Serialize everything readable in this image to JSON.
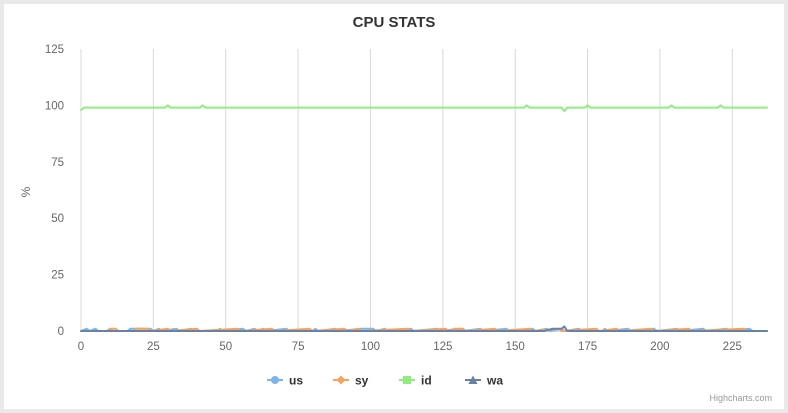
{
  "chart_data": {
    "type": "line",
    "title": "CPU STATS",
    "xlabel": "",
    "ylabel": "%",
    "xlim": [
      0,
      237
    ],
    "ylim": [
      0,
      125
    ],
    "x_ticks": [
      0,
      25,
      50,
      75,
      100,
      125,
      150,
      175,
      200,
      225
    ],
    "y_ticks": [
      0,
      25,
      50,
      75,
      100,
      125
    ],
    "grid": {
      "vertical": true,
      "horizontal": false
    },
    "legend_placement": "bottom-center",
    "credits": "Highcharts.com",
    "series": [
      {
        "name": "us",
        "color": "#7cb5ec",
        "marker": "circle",
        "points": [
          [
            0,
            0
          ],
          [
            2,
            1
          ],
          [
            3,
            0
          ],
          [
            5,
            1
          ],
          [
            6,
            0
          ],
          [
            9,
            0
          ],
          [
            10,
            1
          ],
          [
            11,
            0
          ],
          [
            16,
            0
          ],
          [
            17,
            1
          ],
          [
            24,
            1
          ],
          [
            25,
            0
          ],
          [
            27,
            1
          ],
          [
            28,
            0
          ],
          [
            33,
            1
          ],
          [
            34,
            0
          ],
          [
            38,
            1
          ],
          [
            39,
            0
          ],
          [
            47,
            0
          ],
          [
            48,
            1
          ],
          [
            49,
            0
          ],
          [
            56,
            1
          ],
          [
            57,
            0
          ],
          [
            60,
            1
          ],
          [
            61,
            0
          ],
          [
            63,
            1
          ],
          [
            64,
            0
          ],
          [
            71,
            1
          ],
          [
            72,
            0
          ],
          [
            80,
            0
          ],
          [
            81,
            1
          ],
          [
            82,
            0
          ],
          [
            88,
            1
          ],
          [
            89,
            0
          ],
          [
            97,
            1
          ],
          [
            101,
            1
          ],
          [
            102,
            0
          ],
          [
            105,
            1
          ],
          [
            106,
            0
          ],
          [
            114,
            1
          ],
          [
            115,
            0
          ],
          [
            123,
            1
          ],
          [
            124,
            0
          ],
          [
            131,
            1
          ],
          [
            132,
            0
          ],
          [
            138,
            1
          ],
          [
            139,
            0
          ],
          [
            147,
            1
          ],
          [
            148,
            0
          ],
          [
            156,
            1
          ],
          [
            157,
            0
          ],
          [
            161,
            1
          ],
          [
            162,
            0
          ],
          [
            166,
            1
          ],
          [
            167,
            0
          ],
          [
            172,
            1
          ],
          [
            173,
            0
          ],
          [
            180,
            0
          ],
          [
            181,
            1
          ],
          [
            182,
            0
          ],
          [
            189,
            1
          ],
          [
            190,
            0
          ],
          [
            198,
            1
          ],
          [
            199,
            0
          ],
          [
            206,
            1
          ],
          [
            207,
            0
          ],
          [
            215,
            1
          ],
          [
            216,
            0
          ],
          [
            223,
            1
          ],
          [
            224,
            0
          ],
          [
            231,
            1
          ],
          [
            232,
            0
          ],
          [
            237,
            0
          ]
        ]
      },
      {
        "name": "sy",
        "color": "#f7a35c",
        "marker": "diamond",
        "points": [
          [
            0,
            0
          ],
          [
            9,
            0
          ],
          [
            10,
            1
          ],
          [
            12,
            1
          ],
          [
            13,
            0
          ],
          [
            18,
            0
          ],
          [
            19,
            1
          ],
          [
            23,
            1
          ],
          [
            24,
            0
          ],
          [
            30,
            1
          ],
          [
            31,
            0
          ],
          [
            40,
            1
          ],
          [
            41,
            0
          ],
          [
            54,
            1
          ],
          [
            55,
            0
          ],
          [
            66,
            1
          ],
          [
            67,
            0
          ],
          [
            79,
            1
          ],
          [
            80,
            0
          ],
          [
            91,
            1
          ],
          [
            92,
            0
          ],
          [
            96,
            1
          ],
          [
            97,
            0
          ],
          [
            113,
            1
          ],
          [
            114,
            0
          ],
          [
            126,
            1
          ],
          [
            127,
            0
          ],
          [
            129,
            1
          ],
          [
            132,
            1
          ],
          [
            133,
            0
          ],
          [
            143,
            1
          ],
          [
            144,
            0
          ],
          [
            155,
            1
          ],
          [
            156,
            0
          ],
          [
            165,
            1
          ],
          [
            166,
            0
          ],
          [
            178,
            1
          ],
          [
            179,
            0
          ],
          [
            185,
            1
          ],
          [
            186,
            0
          ],
          [
            197,
            1
          ],
          [
            198,
            0
          ],
          [
            210,
            1
          ],
          [
            211,
            0
          ],
          [
            229,
            1
          ],
          [
            230,
            0
          ],
          [
            237,
            0
          ]
        ]
      },
      {
        "name": "id",
        "color": "#90ed7d",
        "marker": "square",
        "points": [
          [
            0,
            98
          ],
          [
            1,
            99
          ],
          [
            29,
            99
          ],
          [
            30,
            100
          ],
          [
            31,
            99
          ],
          [
            41,
            99
          ],
          [
            42,
            100
          ],
          [
            43,
            99
          ],
          [
            153,
            99
          ],
          [
            154,
            100
          ],
          [
            155,
            99
          ],
          [
            166,
            99
          ],
          [
            167,
            97.5
          ],
          [
            168,
            99
          ],
          [
            174,
            99
          ],
          [
            175,
            100
          ],
          [
            176,
            99
          ],
          [
            203,
            99
          ],
          [
            204,
            100
          ],
          [
            205,
            99
          ],
          [
            220,
            99
          ],
          [
            221,
            100
          ],
          [
            222,
            99
          ],
          [
            237,
            99
          ]
        ]
      },
      {
        "name": "wa",
        "color": "#6882a6",
        "marker": "triangle",
        "points": [
          [
            0,
            0
          ],
          [
            160,
            0
          ],
          [
            163,
            1
          ],
          [
            166,
            1
          ],
          [
            167,
            2
          ],
          [
            168,
            0
          ],
          [
            237,
            0
          ]
        ]
      }
    ]
  }
}
